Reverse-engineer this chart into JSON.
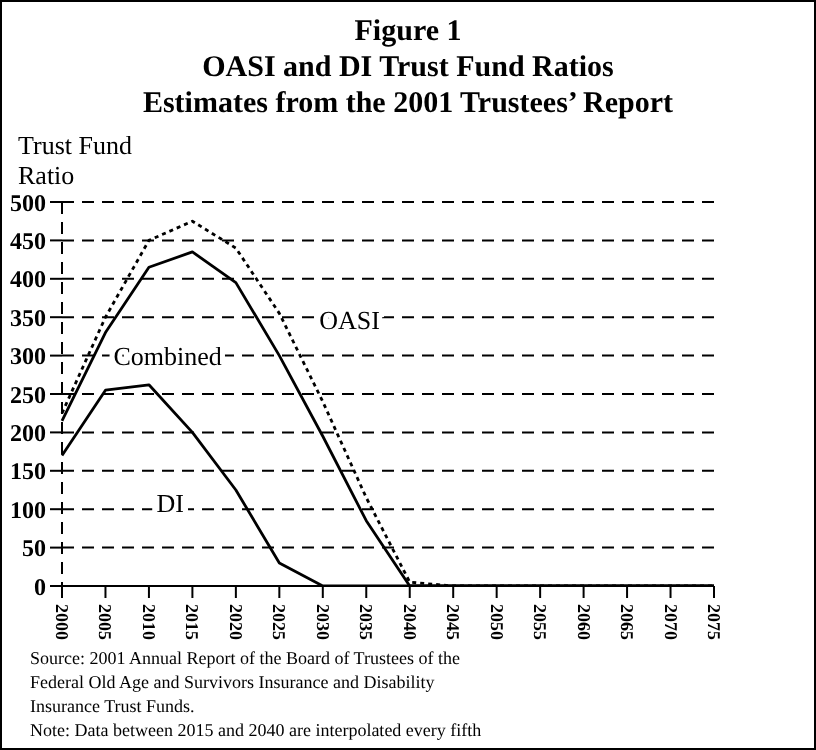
{
  "chart_data": {
    "type": "line",
    "title": "Figure 1\nOASI and DI Trust Fund Ratios\nEstimates from the 2001 Trustees’ Report",
    "ylabel": "Trust Fund\nRatio",
    "categories": [
      "2000",
      "2005",
      "2010",
      "2015",
      "2020",
      "2025",
      "2030",
      "2035",
      "2040",
      "2045",
      "2050",
      "2055",
      "2060",
      "2065",
      "2070",
      "2075"
    ],
    "series": [
      {
        "name": "OASI",
        "color": "#000000",
        "line_style": "dotted",
        "values": [
          225,
          350,
          450,
          475,
          440,
          355,
          240,
          115,
          5,
          0,
          0,
          0,
          0,
          0,
          0,
          0
        ]
      },
      {
        "name": "Combined",
        "color": "#000000",
        "line_style": "solid",
        "values": [
          215,
          330,
          415,
          435,
          395,
          300,
          195,
          85,
          0,
          0,
          0,
          0,
          0,
          0,
          0,
          0
        ]
      },
      {
        "name": "DI",
        "color": "#000000",
        "line_style": "solid",
        "values": [
          170,
          255,
          262,
          200,
          125,
          30,
          0,
          0,
          0,
          0,
          0,
          0,
          0,
          0,
          0,
          0
        ]
      }
    ],
    "ylim": [
      0,
      500
    ],
    "yticks": [
      0,
      50,
      100,
      150,
      200,
      250,
      300,
      350,
      400,
      450,
      500
    ],
    "grid": "y",
    "legend": false,
    "marker": "none",
    "annotations": [
      "Source: 2001 Annual Report of the Board of Trustees of the\nFederal Old Age and Survivors Insurance and Disability\nInsurance Trust Funds.",
      "Note: Data between 2015 and 2040 are interpolated every fifth"
    ]
  }
}
